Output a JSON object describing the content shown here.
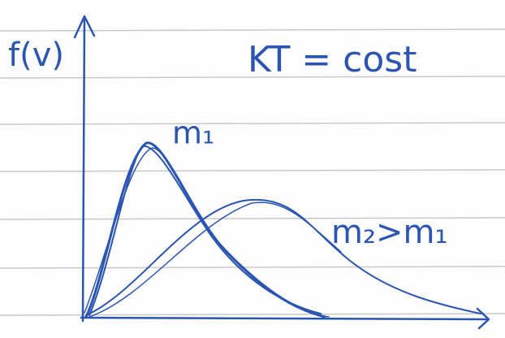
{
  "labels": {
    "y_axis": "f(v)",
    "condition": "KT = cost",
    "curve_1": "m₁",
    "curve_2": "m₂>m₁"
  }
}
